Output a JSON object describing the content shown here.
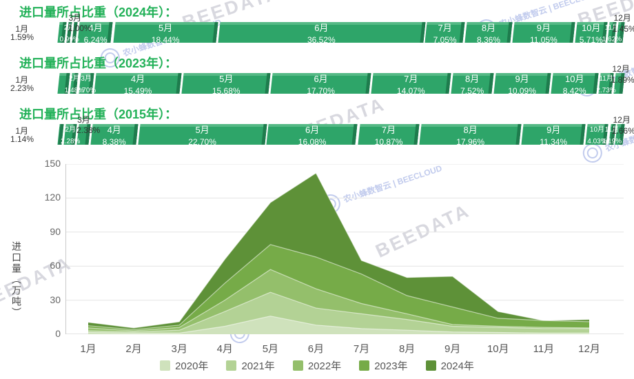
{
  "colors": {
    "title_green": "#22b158",
    "bar_main": "#2ea569",
    "bar_highlight": "#55b985",
    "bar_side": "#1e7c4d",
    "grid_line": "#e4e4e4",
    "axis_line": "#c9c9c9",
    "watermark_gray": "#b9bac6",
    "watermark_blue": "#b7c2ea"
  },
  "share_rows": [
    {
      "title": "进口量所占比重（2024年）：",
      "segments": [
        {
          "month": "1月",
          "pct": 1.59,
          "pct_label": "1.59%",
          "mode": "out-left"
        },
        {
          "month": "2月",
          "pct": 0.99,
          "pct_label": "0.99%",
          "mode": "in-small"
        },
        {
          "month": "3月",
          "pct": 1.0,
          "pct_label": "1.00%",
          "mode": "above"
        },
        {
          "month": "4月",
          "pct": 6.24,
          "pct_label": "6.24%",
          "mode": "in"
        },
        {
          "month": "5月",
          "pct": 18.44,
          "pct_label": "18.44%",
          "mode": "in"
        },
        {
          "month": "6月",
          "pct": 36.52,
          "pct_label": "36.52%",
          "mode": "in"
        },
        {
          "month": "7月",
          "pct": 7.05,
          "pct_label": "7.05%",
          "mode": "in"
        },
        {
          "month": "8月",
          "pct": 8.36,
          "pct_label": "8.36%",
          "mode": "in"
        },
        {
          "month": "9月",
          "pct": 11.05,
          "pct_label": "11.05%",
          "mode": "in"
        },
        {
          "month": "10月",
          "pct": 5.71,
          "pct_label": "5.71%",
          "mode": "in"
        },
        {
          "month": "11月",
          "pct": 1.62,
          "pct_label": "1.62%",
          "mode": "in-small"
        },
        {
          "month": "12月",
          "pct": 1.45,
          "pct_label": "1.45%",
          "mode": "out-right"
        }
      ]
    },
    {
      "title": "进口量所占比重（2023年）：",
      "segments": [
        {
          "month": "1月",
          "pct": 2.23,
          "pct_label": "2.23%",
          "mode": "out-left"
        },
        {
          "month": "2月",
          "pct": 1.48,
          "pct_label": "1.48%",
          "mode": "in-small"
        },
        {
          "month": "3月",
          "pct": 2.7,
          "pct_label": "2.70%",
          "mode": "in-small"
        },
        {
          "month": "4月",
          "pct": 15.49,
          "pct_label": "15.49%",
          "mode": "in"
        },
        {
          "month": "5月",
          "pct": 15.68,
          "pct_label": "15.68%",
          "mode": "in"
        },
        {
          "month": "6月",
          "pct": 17.7,
          "pct_label": "17.70%",
          "mode": "in"
        },
        {
          "month": "7月",
          "pct": 14.07,
          "pct_label": "14.07%",
          "mode": "in"
        },
        {
          "month": "8月",
          "pct": 7.52,
          "pct_label": "7.52%",
          "mode": "in"
        },
        {
          "month": "9月",
          "pct": 10.09,
          "pct_label": "10.09%",
          "mode": "in"
        },
        {
          "month": "10月",
          "pct": 8.42,
          "pct_label": "8.42%",
          "mode": "in"
        },
        {
          "month": "11月",
          "pct": 2.73,
          "pct_label": "2.73%",
          "mode": "in-small"
        },
        {
          "month": "12月",
          "pct": 1.89,
          "pct_label": "1.89%",
          "mode": "out-right"
        }
      ]
    },
    {
      "title": "进口量所占比重（2015年）：",
      "segments": [
        {
          "month": "1月",
          "pct": 1.14,
          "pct_label": "1.14%",
          "mode": "out-left"
        },
        {
          "month": "2月",
          "pct": 2.28,
          "pct_label": "2.28%",
          "mode": "in-small"
        },
        {
          "month": "3月",
          "pct": 2.38,
          "pct_label": "2.38%",
          "mode": "above"
        },
        {
          "month": "4月",
          "pct": 8.38,
          "pct_label": "8.38%",
          "mode": "in"
        },
        {
          "month": "5月",
          "pct": 22.7,
          "pct_label": "22.70%",
          "mode": "in"
        },
        {
          "month": "6月",
          "pct": 16.08,
          "pct_label": "16.08%",
          "mode": "in"
        },
        {
          "month": "7月",
          "pct": 10.87,
          "pct_label": "10.87%",
          "mode": "in"
        },
        {
          "month": "8月",
          "pct": 17.96,
          "pct_label": "17.96%",
          "mode": "in"
        },
        {
          "month": "9月",
          "pct": 11.34,
          "pct_label": "11.34%",
          "mode": "in"
        },
        {
          "month": "10月",
          "pct": 4.03,
          "pct_label": "4.03%",
          "mode": "in-small"
        },
        {
          "month": "11月",
          "pct": 1.19,
          "pct_label": "1.19%",
          "mode": "in-small"
        },
        {
          "month": "12月",
          "pct": 1.66,
          "pct_label": "1.66%",
          "mode": "out-right"
        }
      ]
    }
  ],
  "chart_data": {
    "type": "area",
    "x": [
      "1月",
      "2月",
      "3月",
      "4月",
      "5月",
      "6月",
      "7月",
      "8月",
      "9月",
      "10月",
      "11月",
      "12月"
    ],
    "ylabel": "进口量（万吨）",
    "ylim": [
      0,
      150
    ],
    "y_ticks": [
      0,
      30,
      60,
      90,
      120,
      150
    ],
    "grid": true,
    "legend_position": "bottom",
    "overlay": true,
    "series": [
      {
        "name": "2020年",
        "color": "#cfe2bc",
        "values": [
          1.5,
          1,
          1,
          7,
          16,
          8,
          5,
          3.5,
          2,
          1.5,
          1,
          1
        ]
      },
      {
        "name": "2021年",
        "color": "#b3d295",
        "values": [
          3,
          2,
          3.5,
          20,
          37,
          23,
          18,
          13,
          7,
          6,
          5,
          5
        ]
      },
      {
        "name": "2022年",
        "color": "#94bf6b",
        "values": [
          5.5,
          3,
          6,
          30,
          57,
          40,
          27,
          18,
          8.5,
          7,
          6,
          5.5
        ]
      },
      {
        "name": "2023年",
        "color": "#76ab48",
        "values": [
          7.5,
          4,
          8,
          45,
          79,
          68,
          53,
          34,
          24,
          14,
          12,
          11
        ]
      },
      {
        "name": "2024年",
        "color": "#5e9138",
        "values": [
          10.5,
          5.5,
          11,
          66,
          116,
          142,
          65,
          50,
          51,
          20,
          12,
          13
        ]
      }
    ]
  },
  "watermarks": {
    "stamp_text": "农小蜂数智云 | BEECLOUD",
    "big_text": "BEEDATA"
  }
}
